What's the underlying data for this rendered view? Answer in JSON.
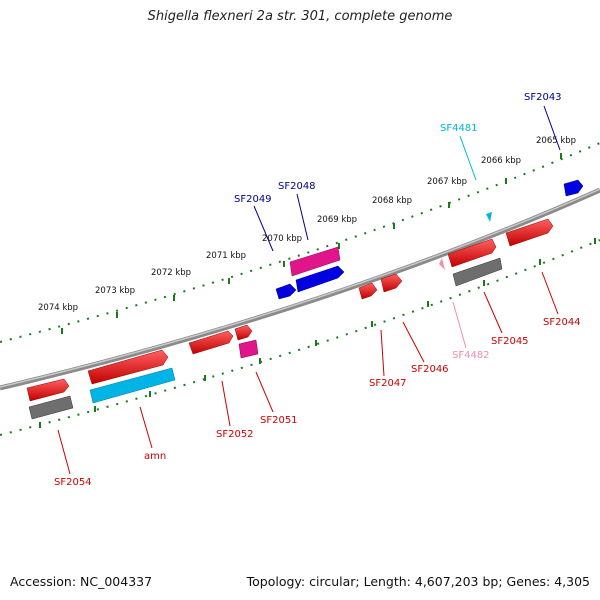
{
  "title": "Shigella flexneri 2a str. 301, complete genome",
  "footer": {
    "accession": "Accession: NC_004337",
    "topology": "Topology: circular; Length: 4,607,203 bp; Genes: 4,305"
  },
  "scale_labels": [
    "2074 kbp",
    "2073 kbp",
    "2072 kbp",
    "2071 kbp",
    "2070 kbp",
    "2069 kbp",
    "2068 kbp",
    "2067 kbp",
    "2066 kbp",
    "2065 kbp"
  ],
  "gene_labels": [
    {
      "name": "SF2043",
      "color": "#00008b"
    },
    {
      "name": "SF4481",
      "color": "#00b4d8"
    },
    {
      "name": "SF2048",
      "color": "#00008b"
    },
    {
      "name": "SF2049",
      "color": "#00008b"
    },
    {
      "name": "SF2044",
      "color": "#cc0000"
    },
    {
      "name": "SF2045",
      "color": "#cc0000"
    },
    {
      "name": "SF4482",
      "color": "#f28cb1"
    },
    {
      "name": "SF2046",
      "color": "#cc0000"
    },
    {
      "name": "SF2047",
      "color": "#cc0000"
    },
    {
      "name": "SF2051",
      "color": "#cc0000"
    },
    {
      "name": "SF2052",
      "color": "#cc0000"
    },
    {
      "name": "amn",
      "color": "#cc0000"
    },
    {
      "name": "SF2054",
      "color": "#cc0000"
    }
  ],
  "colors": {
    "backbone": "#8a8a8a",
    "ticks": "#1a7a1a",
    "red_gene": "#e00000",
    "blue_gene": "#0000e0",
    "magenta_gene": "#e0158a",
    "cyan_gene": "#00b4e6",
    "gray_gene": "#6e6e6e"
  }
}
